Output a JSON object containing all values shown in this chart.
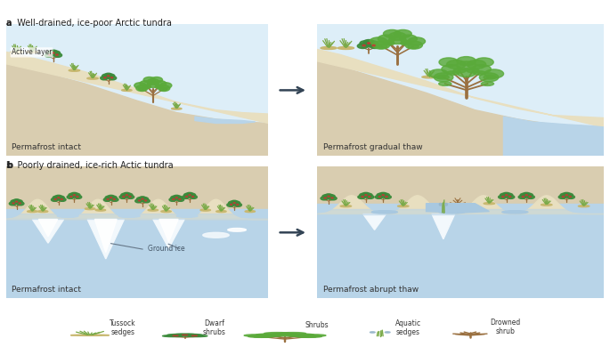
{
  "title_a": "a  Well-drained, ice-poor Arctic tundra",
  "title_b": "b  Poorly drained, ice-rich Actic tundra",
  "label_a_left": "Permafrost intact",
  "label_a_right": "Permafrost gradual thaw",
  "label_b_left": "Permafrost intact",
  "label_b_right": "Permafrost abrupt thaw",
  "active_layer_label": "Active layer",
  "ground_ice_label": "Ground ice",
  "sky_color": "#ddeef8",
  "permafrost_color": "#d9cdb0",
  "ground_color": "#e8dfc0",
  "water_color": "#b8d4e8",
  "water_deep": "#a8c8e0",
  "ice_white": "#f2f8fc",
  "legend_items": [
    "Tussock\nsedges",
    "Dwarf\nshrubs",
    "Shrubs",
    "Aquatic\nsedges",
    "Drowned\nshrub"
  ],
  "grass_green": "#7aaa48",
  "grass_green2": "#6a9a40",
  "dark_green": "#3a8a3a",
  "mid_green": "#5aaa3a",
  "light_green": "#8aba68",
  "brown": "#9a7040",
  "text_color": "#333333",
  "arrow_color": "#334455"
}
